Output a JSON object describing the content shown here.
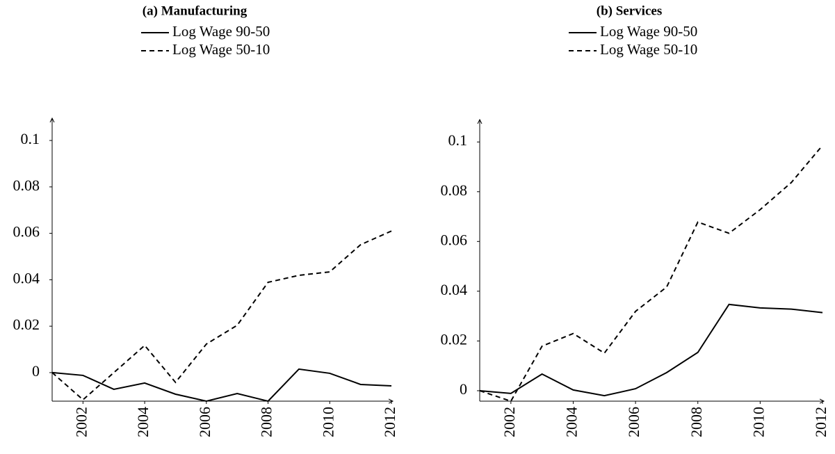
{
  "chart_data": [
    {
      "type": "line",
      "title": "(a) Manufacturing",
      "x": [
        2001,
        2002,
        2003,
        2004,
        2005,
        2006,
        2007,
        2008,
        2009,
        2010,
        2011,
        2012
      ],
      "series": [
        {
          "name": "Log Wage 90-50",
          "color": "#000000",
          "line_style": "solid",
          "values": [
            0,
            -0.0012,
            -0.0072,
            -0.0045,
            -0.0093,
            -0.0123,
            -0.009,
            -0.0123,
            0.0015,
            -0.0003,
            -0.0051,
            -0.0057
          ]
        },
        {
          "name": "Log Wage 50-10",
          "color": "#000000",
          "line_style": "dashed",
          "values": [
            0,
            -0.0117,
            0,
            0.0117,
            -0.0042,
            0.0123,
            0.0204,
            0.0389,
            0.0419,
            0.0434,
            0.0551,
            0.061
          ]
        }
      ],
      "xlim": [
        2001,
        2012
      ],
      "xticks": [
        2002,
        2004,
        2006,
        2008,
        2010,
        2012
      ],
      "ylim": [
        -0.0123,
        0.1096
      ],
      "yticks": [
        0,
        0.02,
        0.04,
        0.06,
        0.08,
        0.1
      ]
    },
    {
      "type": "line",
      "title": "(b) Services",
      "x": [
        2001,
        2002,
        2003,
        2004,
        2005,
        2006,
        2007,
        2008,
        2009,
        2010,
        2011,
        2012
      ],
      "series": [
        {
          "name": "Log Wage 90-50",
          "color": "#000000",
          "line_style": "solid",
          "values": [
            0,
            -0.0011,
            0.0067,
            0.0003,
            -0.002,
            0.0008,
            0.0073,
            0.0154,
            0.0347,
            0.0333,
            0.0328,
            0.0314
          ]
        },
        {
          "name": "Log Wage 50-10",
          "color": "#000000",
          "line_style": "dashed",
          "values": [
            0,
            -0.0042,
            0.0179,
            0.023,
            0.0151,
            0.0319,
            0.0417,
            0.0678,
            0.0633,
            0.0728,
            0.0837,
            0.0986
          ]
        }
      ],
      "xlim": [
        2001,
        2012
      ],
      "xticks": [
        2002,
        2004,
        2006,
        2008,
        2010,
        2012
      ],
      "ylim": [
        -0.0042,
        0.109
      ],
      "yticks": [
        0,
        0.02,
        0.04,
        0.06,
        0.08,
        0.1
      ]
    }
  ]
}
